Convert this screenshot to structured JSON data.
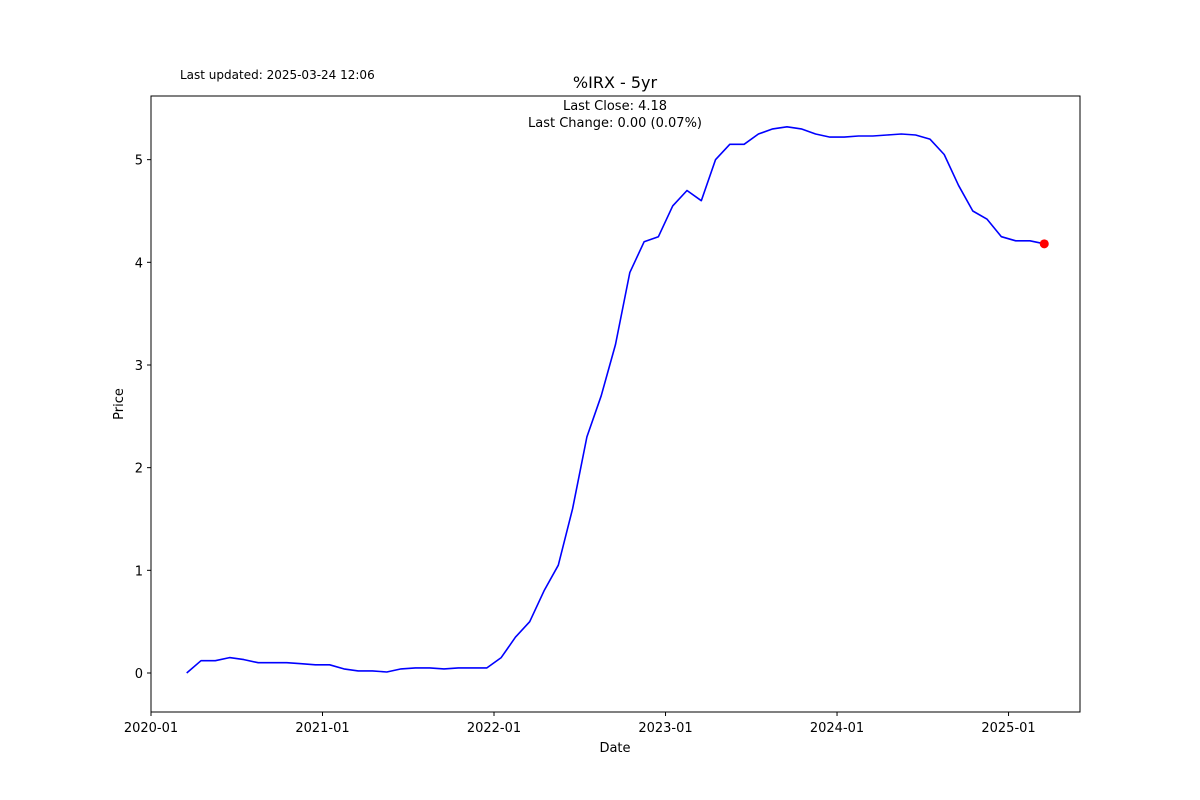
{
  "chart_data": {
    "type": "line",
    "title": "%IRX - 5yr",
    "subtitle": "Last updated: 2025-03-24 12:06",
    "annotations": [
      "Last Close: 4.18",
      "Last Change: 0.00 (0.07%)"
    ],
    "x_label": "Date",
    "y_label": "Price",
    "x": [
      "2020-03",
      "2020-04",
      "2020-05",
      "2020-06",
      "2020-07",
      "2020-08",
      "2020-09",
      "2020-10",
      "2020-11",
      "2020-12",
      "2021-01",
      "2021-02",
      "2021-03",
      "2021-04",
      "2021-05",
      "2021-06",
      "2021-07",
      "2021-08",
      "2021-09",
      "2021-10",
      "2021-11",
      "2021-12",
      "2022-01",
      "2022-02",
      "2022-03",
      "2022-04",
      "2022-05",
      "2022-06",
      "2022-07",
      "2022-08",
      "2022-09",
      "2022-10",
      "2022-11",
      "2022-12",
      "2023-01",
      "2023-02",
      "2023-03",
      "2023-04",
      "2023-05",
      "2023-06",
      "2023-07",
      "2023-08",
      "2023-09",
      "2023-10",
      "2023-11",
      "2023-12",
      "2024-01",
      "2024-02",
      "2024-03",
      "2024-04",
      "2024-05",
      "2024-06",
      "2024-07",
      "2024-08",
      "2024-09",
      "2024-10",
      "2024-11",
      "2024-12",
      "2025-01",
      "2025-02",
      "2025-03"
    ],
    "values": [
      0.0,
      0.12,
      0.12,
      0.15,
      0.13,
      0.1,
      0.1,
      0.1,
      0.09,
      0.08,
      0.08,
      0.04,
      0.02,
      0.02,
      0.01,
      0.04,
      0.05,
      0.05,
      0.04,
      0.05,
      0.05,
      0.05,
      0.15,
      0.35,
      0.5,
      0.8,
      1.05,
      1.6,
      2.3,
      2.7,
      3.2,
      3.9,
      4.2,
      4.25,
      4.55,
      4.7,
      4.6,
      5.0,
      5.15,
      5.15,
      5.25,
      5.3,
      5.32,
      5.3,
      5.25,
      5.22,
      5.22,
      5.23,
      5.23,
      5.24,
      5.25,
      5.24,
      5.2,
      5.05,
      4.75,
      4.5,
      4.42,
      4.25,
      4.21,
      4.21,
      4.18
    ],
    "color": "#0000ff",
    "last_point_color": "#ff0000",
    "xlim": [
      "2020-01",
      "2025-06"
    ],
    "xticks": [
      "2020-01",
      "2021-01",
      "2022-01",
      "2023-01",
      "2024-01",
      "2025-01"
    ],
    "ylim": [
      -0.38,
      5.62
    ],
    "yticks": [
      0,
      1,
      2,
      3,
      4,
      5
    ],
    "grid": false
  }
}
